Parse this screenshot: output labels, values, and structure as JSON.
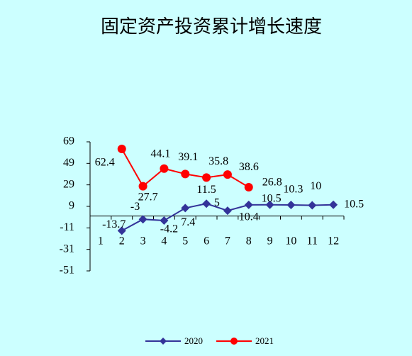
{
  "chart_data": {
    "type": "line",
    "title": "固定资产投资累计增长速度",
    "categories": [
      "1",
      "2",
      "3",
      "4",
      "5",
      "6",
      "7",
      "8",
      "9",
      "10",
      "11",
      "12"
    ],
    "series": [
      {
        "name": "2020",
        "color": "#333399",
        "marker": "diamond",
        "values": [
          null,
          -13.7,
          -3,
          -4.2,
          7.4,
          11.5,
          5,
          10.4,
          10.5,
          10.3,
          10,
          10.5
        ]
      },
      {
        "name": "2021",
        "color": "#ff0000",
        "marker": "circle",
        "values": [
          null,
          62.4,
          27.7,
          44.1,
          39.1,
          35.8,
          38.6,
          26.8,
          null,
          null,
          null,
          null
        ]
      }
    ],
    "ylim": [
      -51,
      69
    ],
    "yticks": [
      -51,
      -31,
      -11,
      9,
      29,
      49,
      69
    ],
    "grid": false,
    "legend": "bottom"
  }
}
